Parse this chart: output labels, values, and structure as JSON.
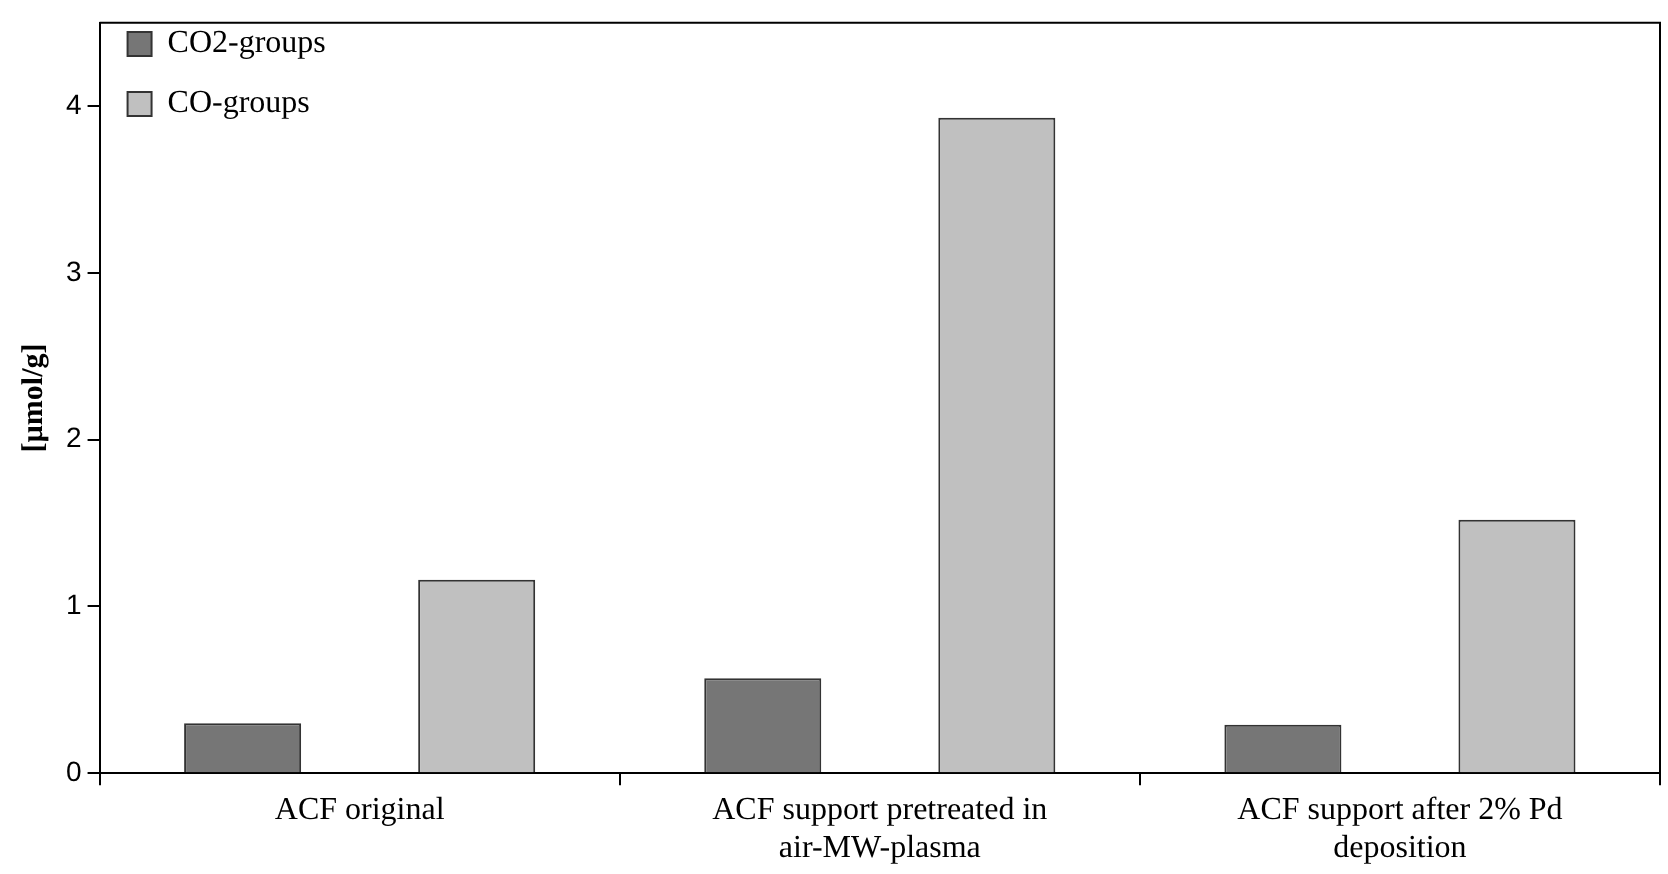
{
  "chart_data": {
    "type": "bar",
    "ylabel": "[µmol/g]",
    "categories": [
      "ACF original",
      "ACF support pretreated in air-MW-plasma",
      "ACF support after 2% Pd deposition"
    ],
    "series": [
      {
        "name": "CO2-groups",
        "color": "#767676",
        "values": [
          0.3,
          0.57,
          0.29
        ]
      },
      {
        "name": "CO-groups",
        "color": "#c0c0c0",
        "values": [
          1.16,
          3.93,
          1.52
        ]
      }
    ],
    "ylim": [
      0,
      4.5
    ],
    "yticks": [
      0,
      1,
      2,
      3,
      4
    ],
    "grid": false,
    "legend": "top left"
  }
}
